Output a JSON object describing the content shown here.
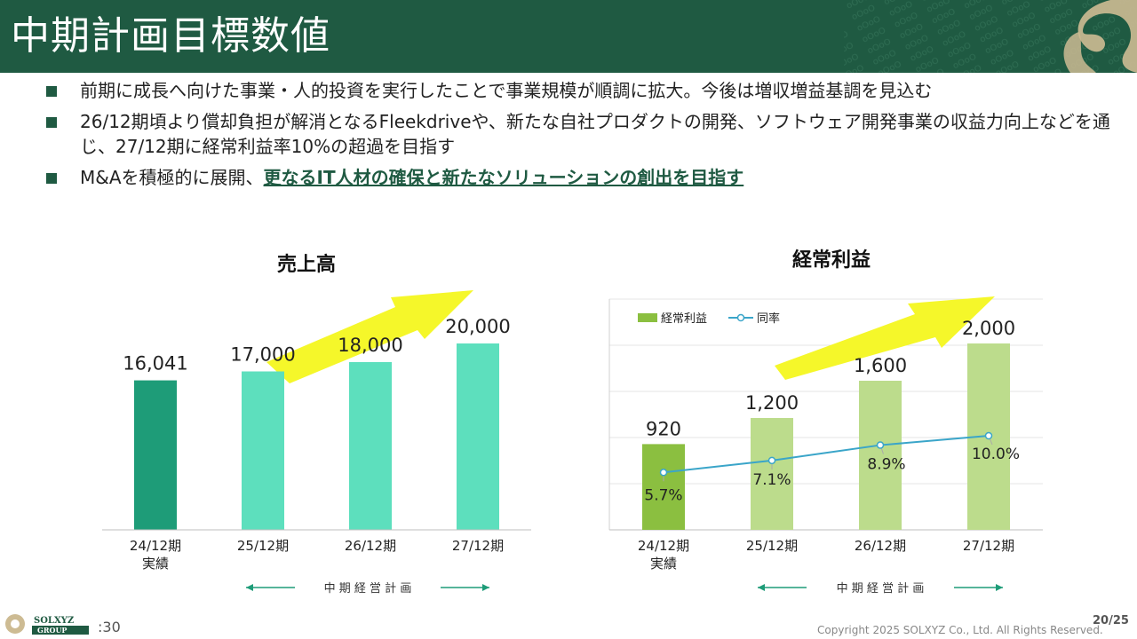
{
  "header": {
    "title": "中期計画目標数値"
  },
  "bullets": {
    "b1": "前期に成長へ向けた事業・人的投資を実行したことで事業規模が順調に拡大。今後は増収増益基調を見込む",
    "b2": "26/12期頃より償却負担が解消となるFleekdriveや、新たな自社プロダクトの開発、ソフトウェア開発事業の収益力向上などを通じ、27/12期に経常利益率10%の超過を目指す",
    "b3_prefix": "M&Aを積極的に展開、",
    "b3_emphasis": "更なるIT人材の確保と新たなソリューションの創出を目指す"
  },
  "colors": {
    "brand": "#1f5a42",
    "sales_actual": "#1e9c78",
    "sales_plan": "#5ddfbd",
    "profit_actual": "#8bbf40",
    "profit_plan": "#bcdc8c",
    "line": "#3aa5c9",
    "arrow": "#f5f72a"
  },
  "chart_data": [
    {
      "type": "bar",
      "title": "売上高",
      "categories": [
        "24/12期\n実績",
        "25/12期",
        "26/12期",
        "27/12期"
      ],
      "values": [
        16041,
        17000,
        18000,
        20000
      ],
      "value_labels": [
        "16,041",
        "17,000",
        "18,000",
        "20,000"
      ],
      "period_label": "中 期 経 営 計 画"
    },
    {
      "type": "bar",
      "title": "経常利益",
      "categories": [
        "24/12期\n実績",
        "25/12期",
        "26/12期",
        "27/12期"
      ],
      "series": [
        {
          "name": "経常利益",
          "type": "bar",
          "values": [
            920,
            1200,
            1600,
            2000
          ],
          "labels": [
            "920",
            "1,200",
            "1,600",
            "2,000"
          ]
        },
        {
          "name": "同率",
          "type": "line",
          "values": [
            5.7,
            7.1,
            8.9,
            10.0
          ],
          "labels": [
            "5.7%",
            "7.1%",
            "8.9%",
            "10.0%"
          ]
        }
      ],
      "period_label": "中 期 経 営 計 画",
      "grid": true,
      "legend": "top-left"
    }
  ],
  "footer": {
    "brand_logo": "SOLXYZ GROUP",
    "tag": ":30",
    "copyright": "Copyright 2025 SOLXYZ Co., Ltd. All Rights Reserved.",
    "page": "20/25"
  }
}
